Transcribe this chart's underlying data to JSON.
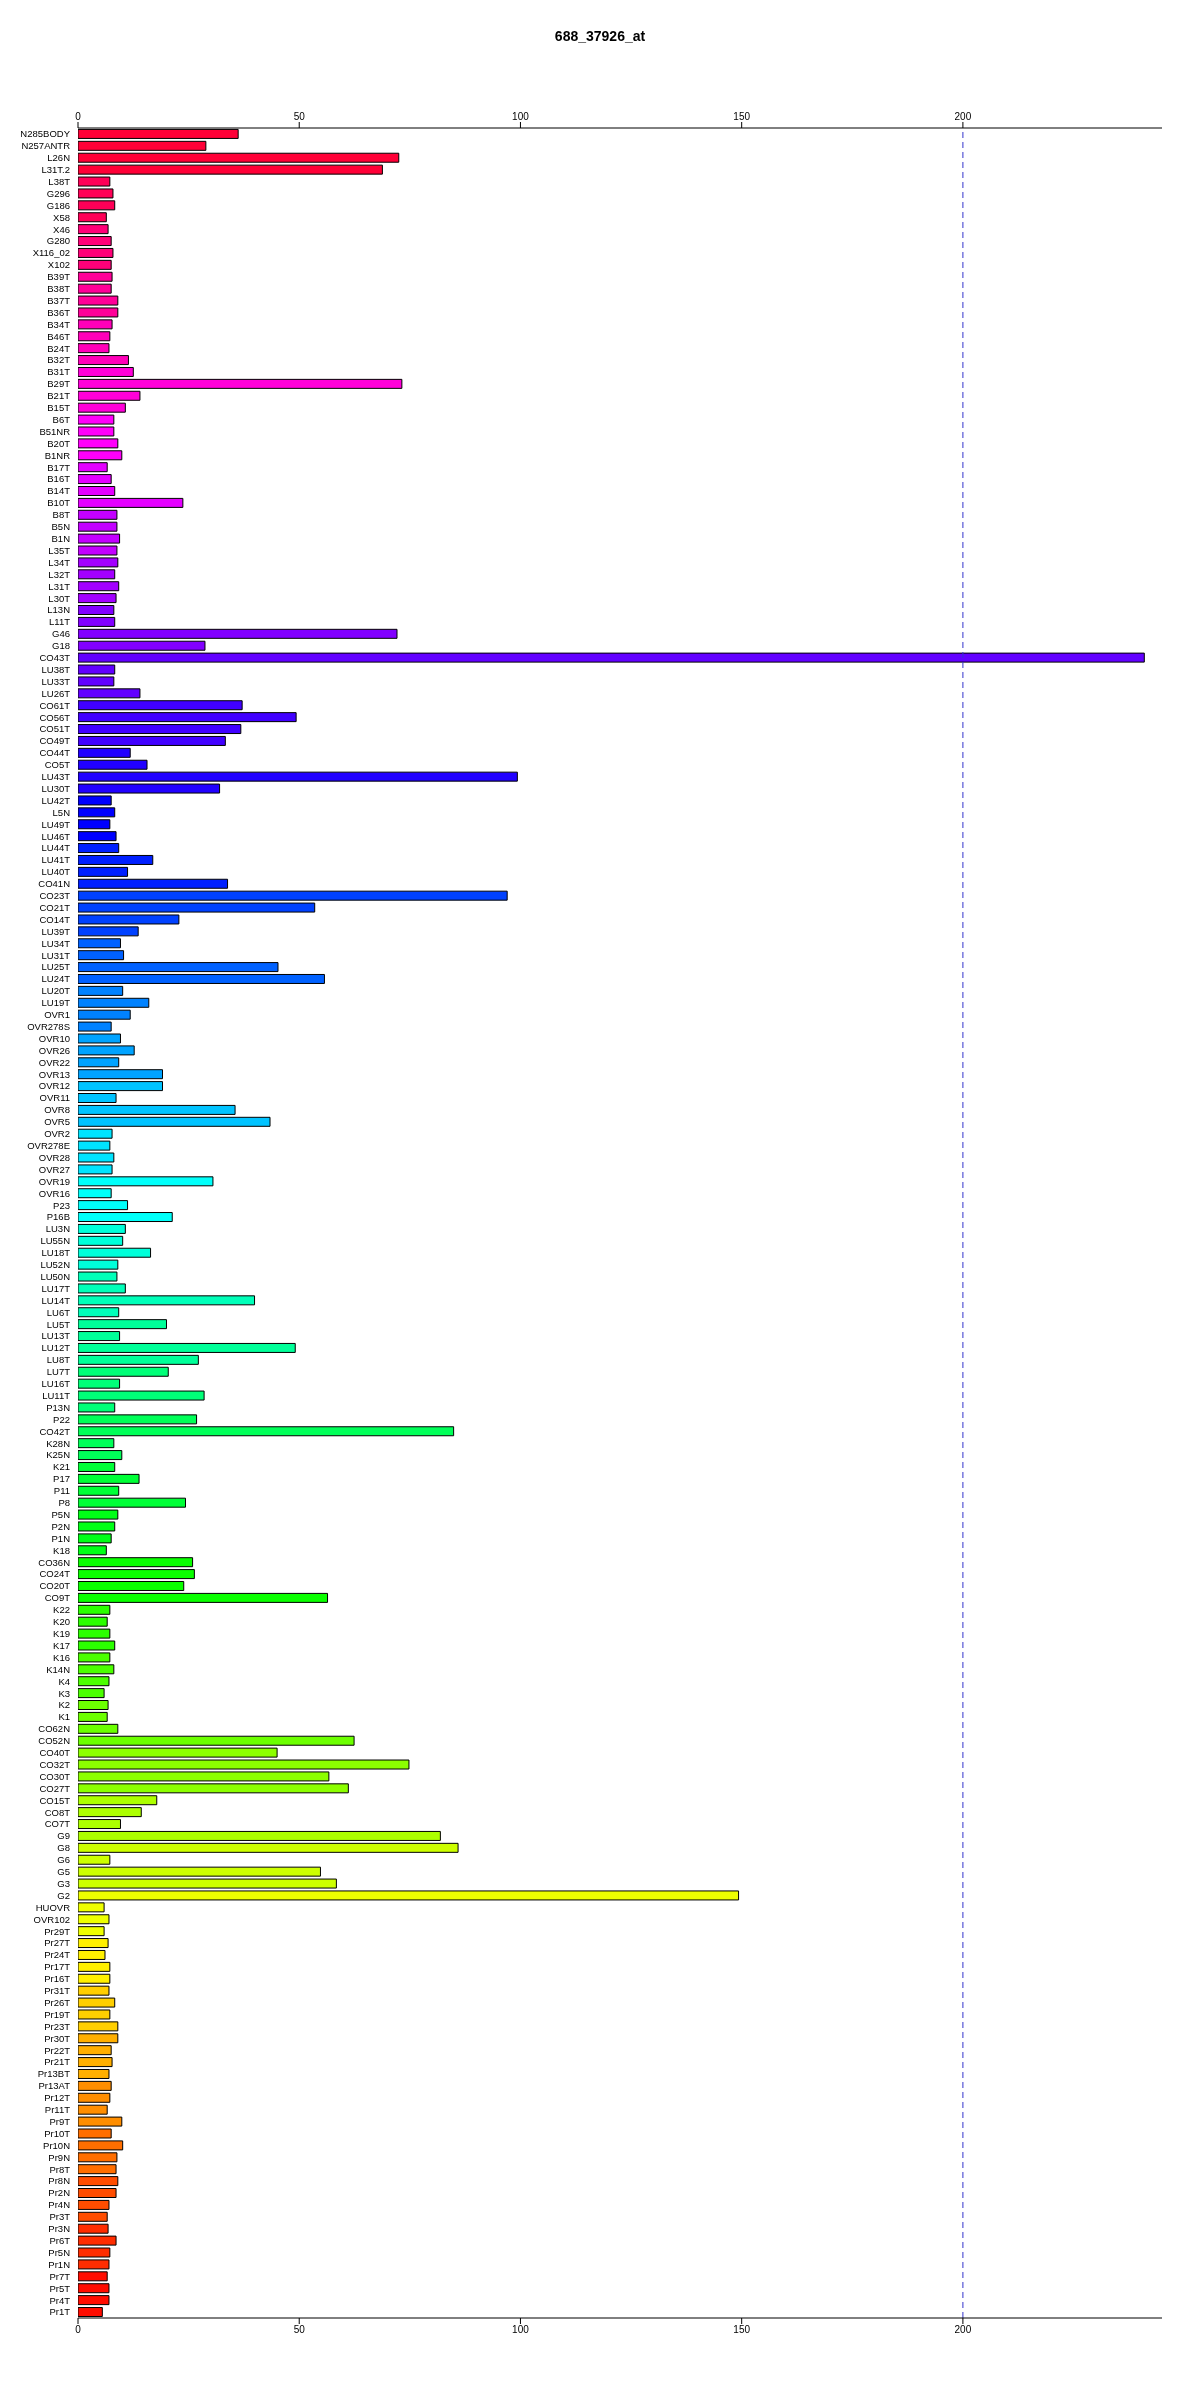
{
  "chart_data": {
    "type": "bar",
    "orientation": "horizontal",
    "title": "688_37926_at",
    "categories": [
      "N285BODY",
      "N257ANTR",
      "L26N",
      "L31T.2",
      "L38T",
      "G296",
      "G186",
      "X58",
      "X46",
      "G280",
      "X116_02",
      "X102",
      "B39T",
      "B38T",
      "B37T",
      "B36T",
      "B34T",
      "B46T",
      "B24T",
      "B32T",
      "B31T",
      "B29T",
      "B21T",
      "B15T",
      "B6T",
      "B51NR",
      "B20T",
      "B1NR",
      "B17T",
      "B16T",
      "B14T",
      "B10T",
      "B8T",
      "B5N",
      "B1N",
      "L35T",
      "L34T",
      "L32T",
      "L31T",
      "L30T",
      "L13N",
      "L11T",
      "G46",
      "G18",
      "CO43T",
      "LU38T",
      "LU33T",
      "LU26T",
      "CO61T",
      "CO56T",
      "CO51T",
      "CO49T",
      "CO44T",
      "CO5T",
      "LU43T",
      "LU30T",
      "LU42T",
      "L5N",
      "LU49T",
      "LU46T",
      "LU44T",
      "LU41T",
      "LU40T",
      "CO41N",
      "CO23T",
      "CO21T",
      "CO14T",
      "LU39T",
      "LU34T",
      "LU31T",
      "LU25T",
      "LU24T",
      "LU20T",
      "LU19T",
      "OVR1",
      "OVR278S",
      "OVR10",
      "OVR26",
      "OVR22",
      "OVR13",
      "OVR12",
      "OVR11",
      "OVR8",
      "OVR5",
      "OVR2",
      "OVR278E",
      "OVR28",
      "OVR27",
      "OVR19",
      "OVR16",
      "P23",
      "P16B",
      "LU3N",
      "LU55N",
      "LU18T",
      "LU52N",
      "LU50N",
      "LU17T",
      "LU14T",
      "LU6T",
      "LU5T",
      "LU13T",
      "LU12T",
      "LU8T",
      "LU7T",
      "LU16T",
      "LU11T",
      "P13N",
      "P22",
      "CO42T",
      "K28N",
      "K25N",
      "K21",
      "P17",
      "P11",
      "P8",
      "P5N",
      "P2N",
      "P1N",
      "K18",
      "CO36N",
      "CO24T",
      "CO20T",
      "CO9T",
      "K22",
      "K20",
      "K19",
      "K17",
      "K16",
      "K14N",
      "K4",
      "K3",
      "K2",
      "K1",
      "CO62N",
      "CO52N",
      "CO40T",
      "CO32T",
      "CO30T",
      "CO27T",
      "CO15T",
      "CO8T",
      "CO7T",
      "G9",
      "G8",
      "G6",
      "G5",
      "G3",
      "G2",
      "HUOVR",
      "OVR102",
      "Pr29T",
      "Pr27T",
      "Pr24T",
      "Pr17T",
      "Pr16T",
      "Pr31T",
      "Pr26T",
      "Pr19T",
      "Pr23T",
      "Pr30T",
      "Pr22T",
      "Pr21T",
      "Pr13BT",
      "Pr13AT",
      "Pr12T",
      "Pr11T",
      "Pr9T",
      "Pr10T",
      "Pr10N",
      "Pr9N",
      "Pr8T",
      "Pr8N",
      "Pr2N",
      "Pr4N",
      "Pr3T",
      "Pr3N",
      "Pr6T",
      "Pr5N",
      "Pr1N",
      "Pr7T",
      "Pr5T",
      "Pr4T",
      "Pr1T"
    ],
    "values": [
      36.2,
      28.9,
      72.5,
      68.8,
      7.2,
      7.9,
      8.3,
      6.4,
      6.8,
      7.5,
      7.9,
      7.5,
      7.7,
      7.5,
      9.0,
      9.0,
      7.7,
      7.2,
      7.0,
      11.4,
      12.5,
      73.2,
      14.0,
      10.7,
      8.1,
      8.1,
      9.0,
      9.9,
      6.6,
      7.5,
      8.3,
      23.7,
      8.8,
      8.8,
      9.4,
      8.8,
      9.0,
      8.3,
      9.2,
      8.6,
      8.1,
      8.3,
      72.1,
      28.7,
      241,
      8.3,
      8.1,
      14.0,
      37.1,
      49.3,
      36.8,
      33.3,
      11.8,
      15.6,
      99.3,
      32.0,
      7.5,
      8.3,
      7.2,
      8.6,
      9.2,
      16.9,
      11.2,
      33.8,
      97.0,
      53.5,
      22.8,
      13.6,
      9.6,
      10.3,
      45.2,
      55.7,
      10.1,
      16.0,
      11.8,
      7.5,
      9.6,
      12.7,
      9.2,
      19.1,
      19.1,
      8.6,
      35.5,
      43.4,
      7.7,
      7.2,
      8.1,
      7.7,
      30.5,
      7.5,
      11.2,
      21.3,
      10.7,
      10.1,
      16.4,
      9.0,
      8.8,
      10.7,
      39.9,
      9.2,
      20.0,
      9.4,
      49.1,
      27.2,
      20.4,
      9.4,
      28.5,
      8.3,
      26.8,
      84.9,
      8.1,
      9.9,
      8.3,
      13.8,
      9.2,
      24.3,
      9.0,
      8.3,
      7.5,
      6.4,
      25.9,
      26.3,
      23.9,
      56.4,
      7.2,
      6.6,
      7.2,
      8.3,
      7.2,
      8.1,
      7.0,
      5.9,
      6.8,
      6.6,
      9.0,
      62.4,
      45.0,
      74.8,
      56.7,
      61.1,
      17.8,
      14.3,
      9.6,
      81.9,
      85.9,
      7.2,
      54.8,
      58.4,
      149.3,
      5.9,
      7.0,
      5.9,
      6.8,
      6.1,
      7.2,
      7.2,
      7.0,
      8.3,
      7.2,
      9.0,
      9.0,
      7.5,
      7.7,
      7.0,
      7.5,
      7.2,
      6.6,
      9.9,
      7.5,
      10.1,
      8.8,
      8.6,
      9.0,
      8.6,
      7.0,
      6.6,
      6.8,
      8.6,
      7.2,
      7.0,
      6.6,
      7.0,
      7.0,
      5.5
    ],
    "colors": [
      "#ff0037",
      "#ff0037",
      "#ff0037",
      "#ff0037",
      "#ff0057",
      "#ff0057",
      "#ff0057",
      "#ff0057",
      "#ff0078",
      "#ff0078",
      "#ff0078",
      "#ff0078",
      "#ff0098",
      "#ff0098",
      "#ff0098",
      "#ff0098",
      "#ff00b9",
      "#ff00b9",
      "#ff00b9",
      "#ff00b9",
      "#ff00d9",
      "#ff00d9",
      "#ff00d9",
      "#ff00d9",
      "#ff00fa",
      "#ff00fa",
      "#ff00fa",
      "#ff00fa",
      "#e400ff",
      "#e400ff",
      "#e400ff",
      "#e400ff",
      "#c300ff",
      "#c300ff",
      "#c300ff",
      "#c300ff",
      "#a300ff",
      "#a300ff",
      "#a300ff",
      "#a300ff",
      "#8200ff",
      "#8200ff",
      "#8200ff",
      "#8200ff",
      "#6200ff",
      "#6200ff",
      "#6200ff",
      "#6200ff",
      "#4100ff",
      "#4100ff",
      "#4100ff",
      "#4100ff",
      "#2100ff",
      "#2100ff",
      "#2100ff",
      "#2100ff",
      "#0000ff",
      "#0000ff",
      "#0000ff",
      "#0000ff",
      "#0020ff",
      "#0020ff",
      "#0020ff",
      "#0020ff",
      "#0041ff",
      "#0041ff",
      "#0041ff",
      "#0041ff",
      "#0061ff",
      "#0061ff",
      "#0061ff",
      "#0061ff",
      "#0082ff",
      "#0082ff",
      "#0082ff",
      "#0082ff",
      "#00a3ff",
      "#00a3ff",
      "#00a3ff",
      "#00a3ff",
      "#00c3ff",
      "#00c3ff",
      "#00c3ff",
      "#00c3ff",
      "#00e4ff",
      "#00e4ff",
      "#00e4ff",
      "#00e4ff",
      "#00fffa",
      "#00fffa",
      "#00fffa",
      "#00fffa",
      "#00ffda",
      "#00ffda",
      "#00ffda",
      "#00ffda",
      "#00ffb9",
      "#00ffb9",
      "#00ffb9",
      "#00ffb9",
      "#00ff99",
      "#00ff99",
      "#00ff99",
      "#00ff99",
      "#00ff78",
      "#00ff78",
      "#00ff78",
      "#00ff78",
      "#00ff58",
      "#00ff58",
      "#00ff58",
      "#00ff58",
      "#00ff37",
      "#00ff37",
      "#00ff37",
      "#00ff37",
      "#00ff17",
      "#00ff17",
      "#00ff17",
      "#00ff17",
      "#0aff00",
      "#0aff00",
      "#0aff00",
      "#0aff00",
      "#2bff00",
      "#2bff00",
      "#2bff00",
      "#2bff00",
      "#4bff00",
      "#4bff00",
      "#4bff00",
      "#4bff00",
      "#6cff00",
      "#6cff00",
      "#6cff00",
      "#6cff00",
      "#8cff00",
      "#8cff00",
      "#8cff00",
      "#8cff00",
      "#adff00",
      "#adff00",
      "#adff00",
      "#adff00",
      "#cdff00",
      "#cdff00",
      "#cdff00",
      "#cdff00",
      "#eeff00",
      "#eeff00",
      "#eeff00",
      "#eeff00",
      "#fff000",
      "#fff000",
      "#fff000",
      "#fff000",
      "#ffcf00",
      "#ffcf00",
      "#ffcf00",
      "#ffcf00",
      "#ffaf00",
      "#ffaf00",
      "#ffaf00",
      "#ffaf00",
      "#ff8e00",
      "#ff8e00",
      "#ff8e00",
      "#ff8e00",
      "#ff6e00",
      "#ff6e00",
      "#ff6e00",
      "#ff6e00",
      "#ff4d00",
      "#ff4d00",
      "#ff4d00",
      "#ff4d00",
      "#ff2d00",
      "#ff2d00",
      "#ff2d00",
      "#ff2d00",
      "#ff0c00",
      "#ff0c00",
      "#ff0c00",
      "#ff0c00"
    ],
    "xlim": [
      0,
      245
    ],
    "xticks": [
      0,
      50,
      100,
      150,
      200
    ],
    "x2lim": [
      0,
      245
    ],
    "x2ticks": [
      0,
      50,
      100,
      150,
      200
    ],
    "ref_lines": [
      {
        "axis": "x",
        "value": 200,
        "color": "#3333cc",
        "line_style": "dashed"
      }
    ],
    "grid": false,
    "legend": false
  }
}
